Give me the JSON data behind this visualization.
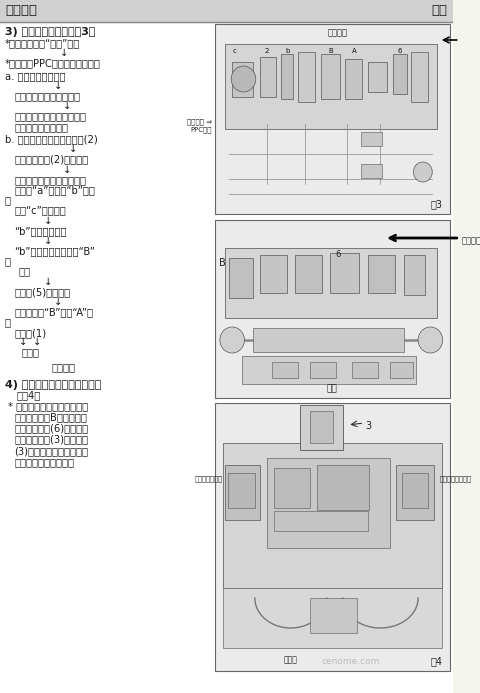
{
  "bg_color": "#f5f5f0",
  "header_left": "液压系统",
  "header_right": "主阀",
  "header_bg": "#d0d0d0",
  "body_bg": "#ffffff",
  "text_color": "#1a1a1a",
  "section3_title": "3) 大臂下降时（参阅图3）",
  "fig3_top_label": "动臂油缸",
  "fig3_left_label": "动臂下降 PPC油压",
  "fig4_top_label": "异常负荷",
  "diagram1_label": "图3",
  "diagram2_label": "动臂",
  "diagram3_label": "图4",
  "unload_label": "卸荷阀（下端）",
  "backpressure_label": "背压阀",
  "main_relief_label": "主溢流阀（下端）",
  "watermark": "cenome.com"
}
